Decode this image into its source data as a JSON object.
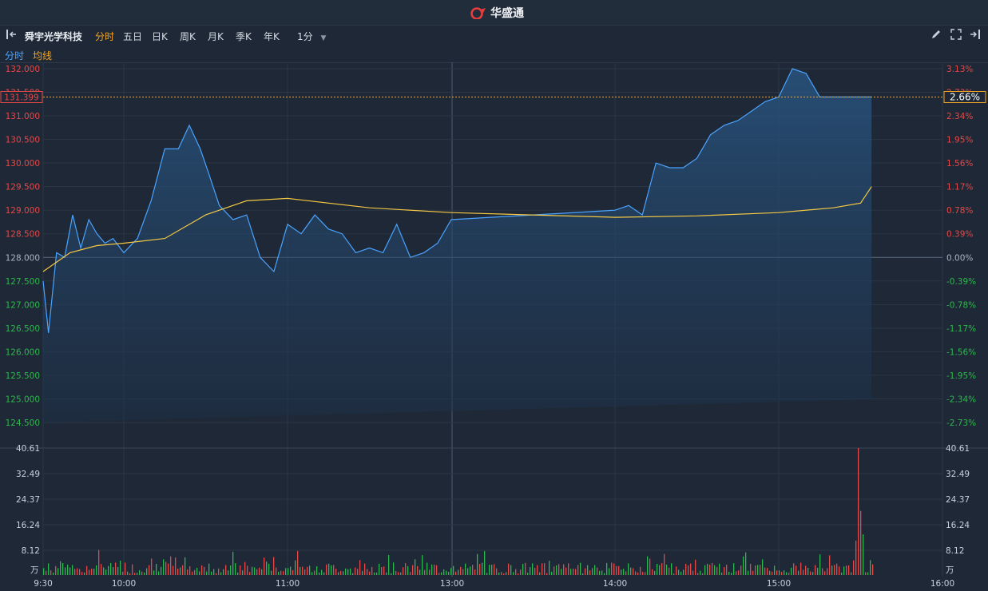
{
  "app": {
    "logo_text": "华盛通"
  },
  "toolbar": {
    "stock_name": "舜宇光学科技",
    "periods": [
      "分时",
      "五日",
      "日K",
      "周K",
      "月K",
      "季K",
      "年K"
    ],
    "active_period": "分时",
    "interval": "1分"
  },
  "legend": {
    "fenshi": "分时",
    "junxian": "均线"
  },
  "colors": {
    "price": "#4aa3ff",
    "avg": "#f5c842",
    "up": "#e64848",
    "down": "#2db84d",
    "accent": "#f5a623"
  },
  "current": {
    "price": "131.399",
    "percent": "2.66%"
  },
  "volume_unit": "万",
  "chart_data": {
    "type": "line",
    "prev_close": 128.0,
    "ylim": [
      124.3,
      132.0
    ],
    "price_ticks": [
      "132.000",
      "131.500",
      "131.000",
      "130.500",
      "130.000",
      "129.500",
      "129.000",
      "128.500",
      "128.000",
      "127.500",
      "127.000",
      "126.500",
      "126.000",
      "125.500",
      "125.000",
      "124.500"
    ],
    "percent_ticks": [
      "3.13%",
      "2.73%",
      "2.34%",
      "1.95%",
      "1.56%",
      "1.17%",
      "0.78%",
      "0.39%",
      "0.00%",
      "-0.39%",
      "-0.78%",
      "-1.17%",
      "-1.56%",
      "-1.95%",
      "-2.34%",
      "-2.73%"
    ],
    "volume_ticks": [
      "40.61",
      "32.49",
      "24.37",
      "16.24",
      "8.12"
    ],
    "volume_max": 40.61,
    "x_labels": [
      "9:30",
      "10:00",
      "11:00",
      "13:00",
      "14:00",
      "15:00",
      "16:00"
    ],
    "series": [
      {
        "name": "分时",
        "x": [
          "9:30",
          "9:32",
          "9:35",
          "9:38",
          "9:41",
          "9:44",
          "9:47",
          "9:50",
          "9:53",
          "9:56",
          "10:00",
          "10:05",
          "10:10",
          "10:15",
          "10:20",
          "10:24",
          "10:28",
          "10:31",
          "10:35",
          "10:40",
          "10:45",
          "10:50",
          "10:55",
          "11:00",
          "11:05",
          "11:10",
          "11:15",
          "11:20",
          "11:25",
          "11:30",
          "11:35",
          "11:40",
          "11:45",
          "11:50",
          "11:55",
          "12:00",
          "13:00",
          "13:05",
          "13:10",
          "13:15",
          "13:20",
          "13:25",
          "13:30",
          "13:35",
          "13:40",
          "13:45",
          "13:50",
          "13:55",
          "14:00",
          "14:05",
          "14:10",
          "14:15",
          "14:20",
          "14:25",
          "14:28",
          "14:30",
          "14:32",
          "14:34"
        ],
        "y": [
          127.5,
          126.4,
          128.1,
          128.0,
          128.9,
          128.2,
          128.8,
          128.5,
          128.3,
          128.4,
          128.1,
          128.4,
          129.2,
          130.3,
          130.3,
          130.8,
          130.3,
          129.8,
          129.1,
          128.8,
          128.9,
          128.0,
          127.7,
          128.7,
          128.5,
          128.9,
          128.6,
          128.5,
          128.1,
          128.2,
          128.1,
          128.7,
          128.0,
          128.1,
          128.3,
          128.8,
          129.0,
          129.1,
          128.9,
          130.0,
          129.9,
          129.9,
          130.1,
          130.6,
          130.8,
          130.9,
          131.1,
          131.3,
          131.4,
          132.0,
          131.9,
          131.4,
          131.4,
          131.4,
          131.4,
          131.4,
          131.4,
          131.4
        ]
      },
      {
        "name": "均线",
        "x": [
          "9:30",
          "9:35",
          "9:40",
          "9:50",
          "10:00",
          "10:15",
          "10:30",
          "10:45",
          "11:00",
          "11:30",
          "12:00",
          "13:00",
          "13:30",
          "14:00",
          "14:20",
          "14:30",
          "14:34"
        ],
        "y": [
          127.7,
          127.9,
          128.1,
          128.25,
          128.3,
          128.4,
          128.9,
          129.2,
          129.25,
          129.05,
          128.95,
          128.85,
          128.88,
          128.95,
          129.05,
          129.15,
          129.5
        ]
      }
    ],
    "volume": {
      "x_from": "9:30",
      "x_to": "14:34",
      "note": "per-minute volume bars"
    }
  }
}
